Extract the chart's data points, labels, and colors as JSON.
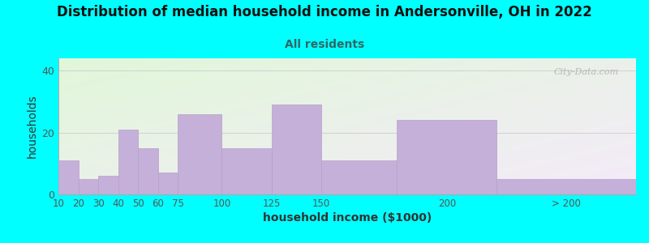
{
  "title": "Distribution of median household income in Andersonville, OH in 2022",
  "subtitle": "All residents",
  "xlabel": "household income ($1000)",
  "ylabel": "households",
  "background_color": "#00FFFF",
  "bar_color": "#c4b0d8",
  "bar_edge_color": "#b8a0cc",
  "watermark": "City-Data.com",
  "categories": [
    "10",
    "20",
    "30",
    "40",
    "50",
    "60",
    "75",
    "100",
    "125",
    "150",
    "200",
    "> 200"
  ],
  "values": [
    11,
    5,
    6,
    21,
    15,
    7,
    26,
    15,
    29,
    11,
    24,
    5
  ],
  "bar_lefts": [
    5,
    15,
    25,
    35,
    45,
    55,
    65,
    87,
    112,
    137,
    175,
    225
  ],
  "bar_rights": [
    15,
    25,
    35,
    45,
    55,
    65,
    87,
    112,
    137,
    175,
    225,
    295
  ],
  "ylim": [
    0,
    44
  ],
  "yticks": [
    0,
    20,
    40
  ],
  "title_fontsize": 12,
  "subtitle_fontsize": 10,
  "axis_label_fontsize": 10,
  "subtitle_color": "#336666",
  "title_color": "#111111"
}
